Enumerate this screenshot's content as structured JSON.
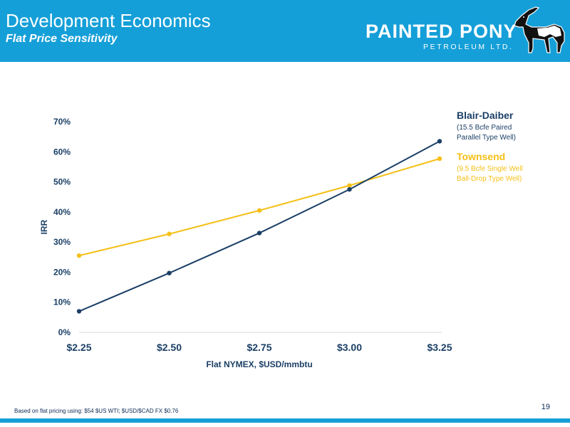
{
  "header": {
    "title": "Development Economics",
    "subtitle": "Flat Price Sensitivity",
    "logo_name": "PAINTED PONY",
    "logo_sub": "PETROLEUM LTD."
  },
  "colors": {
    "header_bg": "#159fd8",
    "blair_daiber": "#1b3f66",
    "townsend": "#f5c018"
  },
  "chart_data": {
    "type": "line",
    "title": "",
    "xlabel": "Flat NYMEX, $USD/mmbtu",
    "ylabel": "IRR",
    "x": [
      2.25,
      2.5,
      2.75,
      3.0,
      3.25
    ],
    "categories": [
      "$2.25",
      "$2.50",
      "$2.75",
      "$3.00",
      "$3.25"
    ],
    "ylim": [
      0,
      70
    ],
    "yticks": [
      0,
      10,
      20,
      30,
      40,
      50,
      60,
      70
    ],
    "ytick_labels": [
      "0%",
      "10%",
      "20%",
      "30%",
      "40%",
      "50%",
      "60%",
      "70%"
    ],
    "grid": false,
    "legend_position": "right",
    "series": [
      {
        "name": "Blair-Daiber",
        "description": "(15.5 Bcfe Paired\nParallel Type Well)",
        "color": "#1b3f66",
        "values": [
          7,
          19.7,
          33,
          47.5,
          63.5
        ]
      },
      {
        "name": "Townsend",
        "description": "(9.5 Bcfe Single Well\nBall-Drop Type Well)",
        "color": "#f5c018",
        "values": [
          25.5,
          32.7,
          40.5,
          48.8,
          57.7
        ]
      }
    ]
  },
  "footer": {
    "note": "Based on flat pricing using: $54 $US WTI; $USD/$CAD FX $0.76",
    "page_number": "19"
  }
}
